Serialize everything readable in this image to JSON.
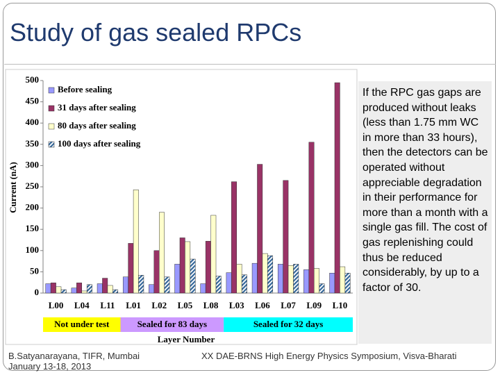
{
  "slide": {
    "title": "Study of gas sealed RPCs",
    "text": "If the RPC gas gaps are produced without leaks (less than 1.75 mm  WC in more than 33 hours), then the detectors can be operated without appreciable degradation in their performance for more than a month with a single gas fill. The cost of gas replenishing could thus be reduced considerably, by up to a factor of 30.",
    "footer_left": [
      "B.Satyanarayana, TIFR, Mumbai",
      "January 13-18, 2013"
    ],
    "footer_right": "XX DAE-BRNS High Energy Physics Symposium, Visva-Bharati"
  },
  "chart_data": {
    "type": "bar",
    "y_label": "Current (nA)",
    "x_label": "Layer Number",
    "categories": [
      "L00",
      "L04",
      "L11",
      "L01",
      "L02",
      "L05",
      "L08",
      "L03",
      "L06",
      "L07",
      "L09",
      "L10"
    ],
    "series": [
      {
        "name": "Before sealing",
        "color": "#9999ff",
        "values": [
          22,
          12,
          22,
          38,
          20,
          68,
          22,
          48,
          70,
          68,
          55,
          47
        ]
      },
      {
        "name": "31 days after sealing",
        "color": "#993366",
        "values": [
          24,
          24,
          35,
          117,
          100,
          130,
          122,
          262,
          303,
          265,
          355,
          495
        ]
      },
      {
        "name": "80 days after sealing",
        "color": "#ffffcc",
        "values": [
          15,
          5,
          18,
          243,
          190,
          121,
          183,
          68,
          93,
          65,
          58,
          62
        ]
      },
      {
        "name": "100 days after sealing",
        "color": "#336699",
        "pattern": "hatch",
        "values": [
          8,
          20,
          8,
          42,
          38,
          80,
          40,
          43,
          88,
          68,
          22,
          47
        ]
      }
    ],
    "groups": [
      {
        "label": "Not under test",
        "color": "#ffff00"
      },
      {
        "label": "Sealed for 83 days",
        "color": "#cc99ff"
      },
      {
        "label": "Sealed for 32 days",
        "color": "#00ffff"
      }
    ],
    "ylim": [
      0,
      500
    ],
    "yticks": [
      0,
      50,
      100,
      150,
      200,
      250,
      300,
      350,
      400,
      450,
      500
    ],
    "grid": false
  }
}
